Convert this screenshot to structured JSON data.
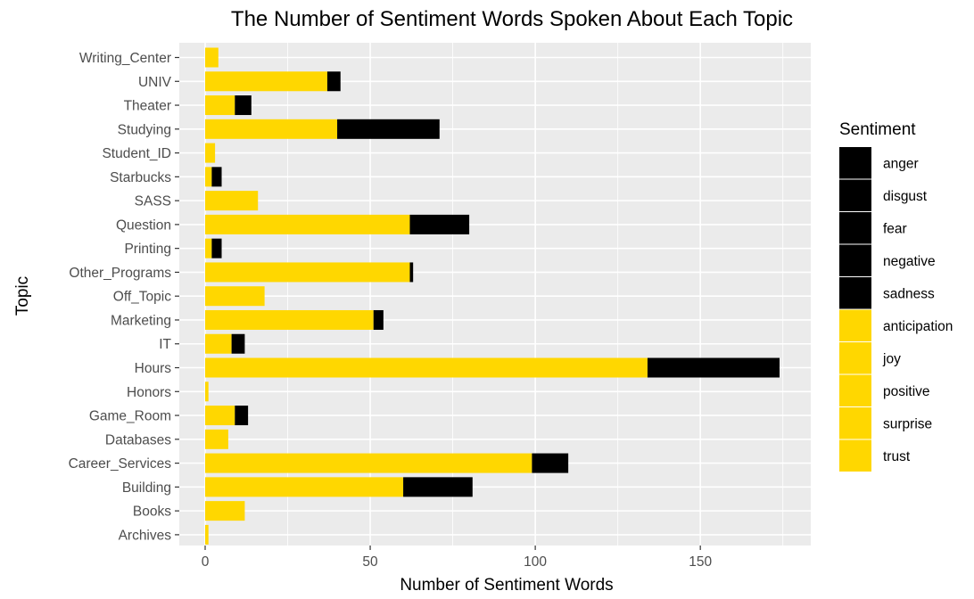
{
  "chart_data": {
    "type": "bar",
    "orientation": "horizontal",
    "stacked": true,
    "title": "The Number of Sentiment Words Spoken About Each Topic",
    "xlabel": "Number of Sentiment Words",
    "ylabel": "Topic",
    "xlim": [
      -2,
      180
    ],
    "xticks": [
      0,
      50,
      100,
      150
    ],
    "grid": true,
    "legend_position": "right",
    "legend_title": "Sentiment",
    "categories": [
      "Writing_Center",
      "UNIV",
      "Theater",
      "Studying",
      "Student_ID",
      "Starbucks",
      "SASS",
      "Question",
      "Printing",
      "Other_Programs",
      "Off_Topic",
      "Marketing",
      "IT",
      "Hours",
      "Honors",
      "Game_Room",
      "Databases",
      "Career_Services",
      "Building",
      "Books",
      "Archives"
    ],
    "series": [
      {
        "name": "positive sentiments (anticipation, joy, positive, surprise, trust)",
        "color": "#FFD700",
        "values": [
          4,
          37,
          9,
          40,
          3,
          2,
          16,
          62,
          2,
          62,
          18,
          51,
          8,
          134,
          1,
          9,
          7,
          99,
          60,
          12,
          1
        ]
      },
      {
        "name": "negative sentiments (anger, disgust, fear, negative, sadness)",
        "color": "#000000",
        "values": [
          0,
          4,
          5,
          31,
          0,
          3,
          0,
          18,
          3,
          1,
          0,
          3,
          4,
          40,
          0,
          4,
          0,
          11,
          21,
          0,
          0
        ]
      }
    ],
    "legend_items": [
      {
        "label": "anger",
        "color": "#000000"
      },
      {
        "label": "disgust",
        "color": "#000000"
      },
      {
        "label": "fear",
        "color": "#000000"
      },
      {
        "label": "negative",
        "color": "#000000"
      },
      {
        "label": "sadness",
        "color": "#000000"
      },
      {
        "label": "anticipation",
        "color": "#FFD700"
      },
      {
        "label": "joy",
        "color": "#FFD700"
      },
      {
        "label": "positive",
        "color": "#FFD700"
      },
      {
        "label": "surprise",
        "color": "#FFD700"
      },
      {
        "label": "trust",
        "color": "#FFD700"
      }
    ],
    "panel_color": "#EBEBEB",
    "grid_color": "#FFFFFF"
  }
}
